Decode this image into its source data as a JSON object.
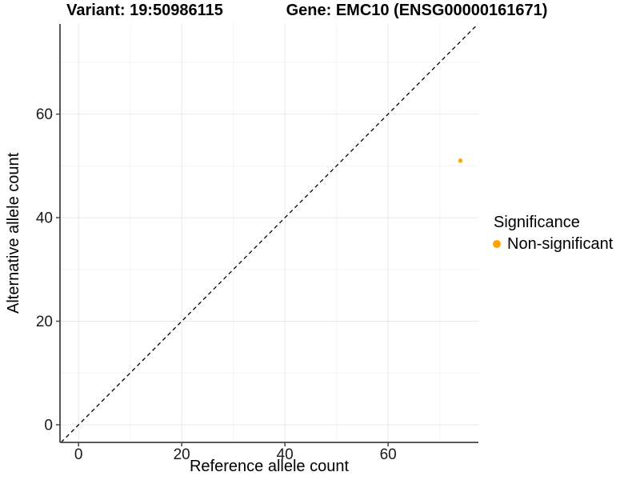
{
  "chart_data": {
    "type": "scatter",
    "titles": {
      "variant": "Variant: 19:50986115",
      "gene": "Gene: EMC10 (ENSG00000161671)"
    },
    "xlabel": "Reference allele count",
    "ylabel": "Alternative allele count",
    "xlim": [
      -3.6,
      77.5
    ],
    "ylim": [
      -3.4,
      77.4
    ],
    "x_ticks": [
      0,
      20,
      40,
      60
    ],
    "y_ticks": [
      0,
      20,
      40,
      60
    ],
    "x_minor_ticks": [
      10,
      30,
      50,
      70
    ],
    "y_minor_ticks": [
      10,
      30,
      50,
      70
    ],
    "grid": "major and minor gridlines on white panel",
    "reference_line": {
      "type": "identity",
      "slope": 1,
      "intercept": 0,
      "style": "dashed",
      "color": "#000000"
    },
    "series": [
      {
        "name": "Non-significant",
        "color": "#FFA500",
        "points": [
          {
            "x": 74,
            "y": 51
          }
        ]
      }
    ],
    "legend": {
      "title": "Significance",
      "position": "right",
      "entries": [
        {
          "label": "Non-significant",
          "color": "#FFA500"
        }
      ]
    },
    "colors": {
      "background": "#FFFFFF",
      "grid_major": "#E8E8E8",
      "grid_minor": "#F3F3F3",
      "axis_line": "#444444",
      "tick_text": "#1A1A1A",
      "title_text": "#000000"
    }
  }
}
